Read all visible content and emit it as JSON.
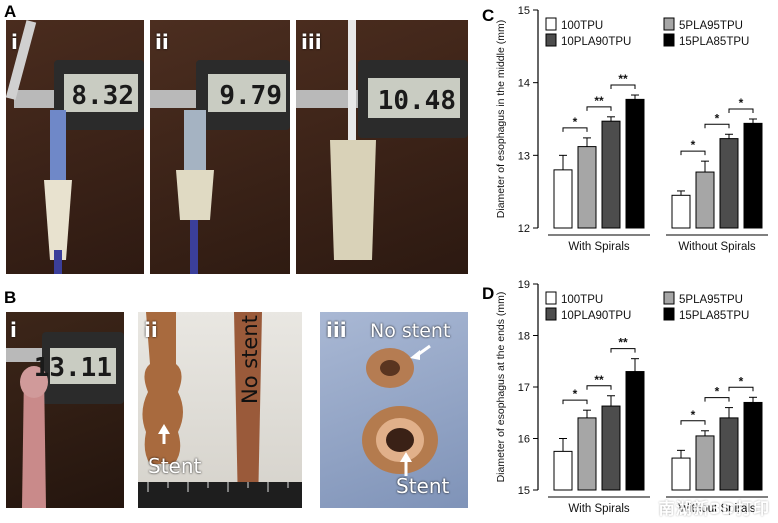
{
  "figure": {
    "panels": {
      "A": {
        "letter": "A",
        "subpanels": [
          {
            "label": "i",
            "reading": "8.32"
          },
          {
            "label": "ii",
            "reading": "9.79"
          },
          {
            "label": "iii",
            "reading": "10.48"
          }
        ]
      },
      "B": {
        "letter": "B",
        "subpanels": [
          {
            "label": "i",
            "reading": "13.11"
          },
          {
            "label": "ii",
            "text_stent": "Stent",
            "text_nostent": "No stent"
          },
          {
            "label": "iii",
            "text_nostent": "No stent",
            "text_stent": "Stent"
          }
        ]
      }
    },
    "watermark": "南湖新3D打印"
  },
  "chart_data": [
    {
      "panel": "C",
      "type": "bar",
      "ylabel": "Diameter of esophagus in the middle (mm)",
      "ylim": [
        12,
        15
      ],
      "yticks": [
        12,
        13,
        14,
        15
      ],
      "groups": [
        "With Spirals",
        "Without Spirals"
      ],
      "legend": [
        "100TPU",
        "5PLA95TPU",
        "10PLA90TPU",
        "15PLA85TPU"
      ],
      "series": [
        {
          "name": "100TPU",
          "color": "#ffffff",
          "values": [
            12.8,
            12.45
          ],
          "errors": [
            0.2,
            0.06
          ]
        },
        {
          "name": "5PLA95TPU",
          "color": "#a6a6a6",
          "values": [
            13.12,
            12.77
          ],
          "errors": [
            0.12,
            0.15
          ]
        },
        {
          "name": "10PLA90TPU",
          "color": "#4d4d4d",
          "values": [
            13.47,
            13.23
          ],
          "errors": [
            0.06,
            0.06
          ]
        },
        {
          "name": "15PLA85TPU",
          "color": "#000000",
          "values": [
            13.77,
            13.44
          ],
          "errors": [
            0.06,
            0.06
          ]
        }
      ],
      "significance": [
        {
          "group": 0,
          "pair": [
            0,
            1
          ],
          "label": "*"
        },
        {
          "group": 0,
          "pair": [
            1,
            2
          ],
          "label": "**"
        },
        {
          "group": 0,
          "pair": [
            2,
            3
          ],
          "label": "**"
        },
        {
          "group": 1,
          "pair": [
            0,
            1
          ],
          "label": "*"
        },
        {
          "group": 1,
          "pair": [
            1,
            2
          ],
          "label": "*"
        },
        {
          "group": 1,
          "pair": [
            2,
            3
          ],
          "label": "*"
        }
      ]
    },
    {
      "panel": "D",
      "type": "bar",
      "ylabel": "Diameter of esophagus at the ends (mm)",
      "ylim": [
        15,
        19
      ],
      "yticks": [
        15,
        16,
        17,
        18,
        19
      ],
      "groups": [
        "With Spirals",
        "Without Spirals"
      ],
      "legend": [
        "100TPU",
        "5PLA95TPU",
        "10PLA90TPU",
        "15PLA85TPU"
      ],
      "series": [
        {
          "name": "100TPU",
          "color": "#ffffff",
          "values": [
            15.75,
            15.62
          ],
          "errors": [
            0.25,
            0.15
          ]
        },
        {
          "name": "5PLA95TPU",
          "color": "#a6a6a6",
          "values": [
            16.4,
            16.05
          ],
          "errors": [
            0.15,
            0.1
          ]
        },
        {
          "name": "10PLA90TPU",
          "color": "#4d4d4d",
          "values": [
            16.63,
            16.4
          ],
          "errors": [
            0.2,
            0.2
          ]
        },
        {
          "name": "15PLA85TPU",
          "color": "#000000",
          "values": [
            17.3,
            16.7
          ],
          "errors": [
            0.25,
            0.1
          ]
        }
      ],
      "significance": [
        {
          "group": 0,
          "pair": [
            0,
            1
          ],
          "label": "*"
        },
        {
          "group": 0,
          "pair": [
            1,
            2
          ],
          "label": "**"
        },
        {
          "group": 0,
          "pair": [
            2,
            3
          ],
          "label": "**"
        },
        {
          "group": 1,
          "pair": [
            0,
            1
          ],
          "label": "*"
        },
        {
          "group": 1,
          "pair": [
            1,
            2
          ],
          "label": "*"
        },
        {
          "group": 1,
          "pair": [
            2,
            3
          ],
          "label": "*"
        }
      ]
    }
  ]
}
